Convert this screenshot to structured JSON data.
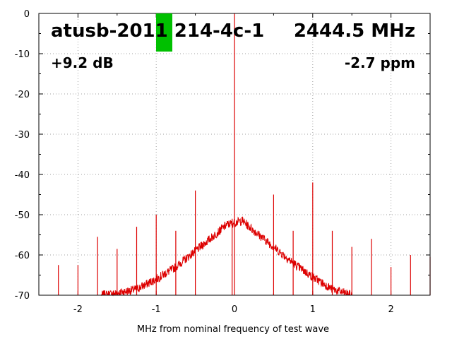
{
  "chart_data": {
    "type": "line",
    "title": "atusb-2011 214-4c-1",
    "frequency_label": "2444.5 MHz",
    "gain_label": "+9.2 dB",
    "ppm_label": "-2.7 ppm",
    "xlabel": "MHz from nominal frequency of test wave",
    "ylabel": "",
    "xlim": [
      -2.5,
      2.5
    ],
    "ylim": [
      -70,
      0
    ],
    "x_ticks": [
      -2,
      -1,
      0,
      1,
      2
    ],
    "x_tick_labels": [
      "-2",
      "-1",
      "0",
      "1",
      "2"
    ],
    "y_ticks": [
      0,
      -10,
      -20,
      -30,
      -40,
      -50,
      -60,
      -70
    ],
    "y_tick_labels": [
      "0",
      "-10",
      "-20",
      "-30",
      "-40",
      "-50",
      "-60",
      "-70"
    ],
    "grid": true,
    "series_color": "#dd0000",
    "marker_color": "#00c000",
    "noise_floor": {
      "x": [
        -1.7,
        -1.5,
        -1.25,
        -1.0,
        -0.75,
        -0.5,
        -0.25,
        -0.1,
        0.0,
        0.1,
        0.25,
        0.5,
        0.75,
        1.0,
        1.25,
        1.5
      ],
      "y": [
        -70,
        -69.5,
        -68.5,
        -66,
        -63,
        -59,
        -55,
        -52.5,
        -52,
        -51.5,
        -54,
        -58,
        -62,
        -65.5,
        -68.5,
        -70
      ]
    },
    "spurs": [
      {
        "x": -2.25,
        "y": -62.5
      },
      {
        "x": -2.0,
        "y": -62.5
      },
      {
        "x": -1.75,
        "y": -55.5
      },
      {
        "x": -1.5,
        "y": -58.5
      },
      {
        "x": -1.25,
        "y": -53
      },
      {
        "x": -1.0,
        "y": -50
      },
      {
        "x": -0.75,
        "y": -54
      },
      {
        "x": -0.5,
        "y": -44
      },
      {
        "x": -0.03,
        "y": -51
      },
      {
        "x": 0.0,
        "y": 0
      },
      {
        "x": 0.5,
        "y": -45
      },
      {
        "x": 0.75,
        "y": -54
      },
      {
        "x": 1.0,
        "y": -42
      },
      {
        "x": 1.25,
        "y": -54
      },
      {
        "x": 1.5,
        "y": -58
      },
      {
        "x": 1.75,
        "y": -56
      },
      {
        "x": 2.0,
        "y": -63
      },
      {
        "x": 2.25,
        "y": -60
      },
      {
        "x": 2.5,
        "y": -60.5
      }
    ]
  }
}
